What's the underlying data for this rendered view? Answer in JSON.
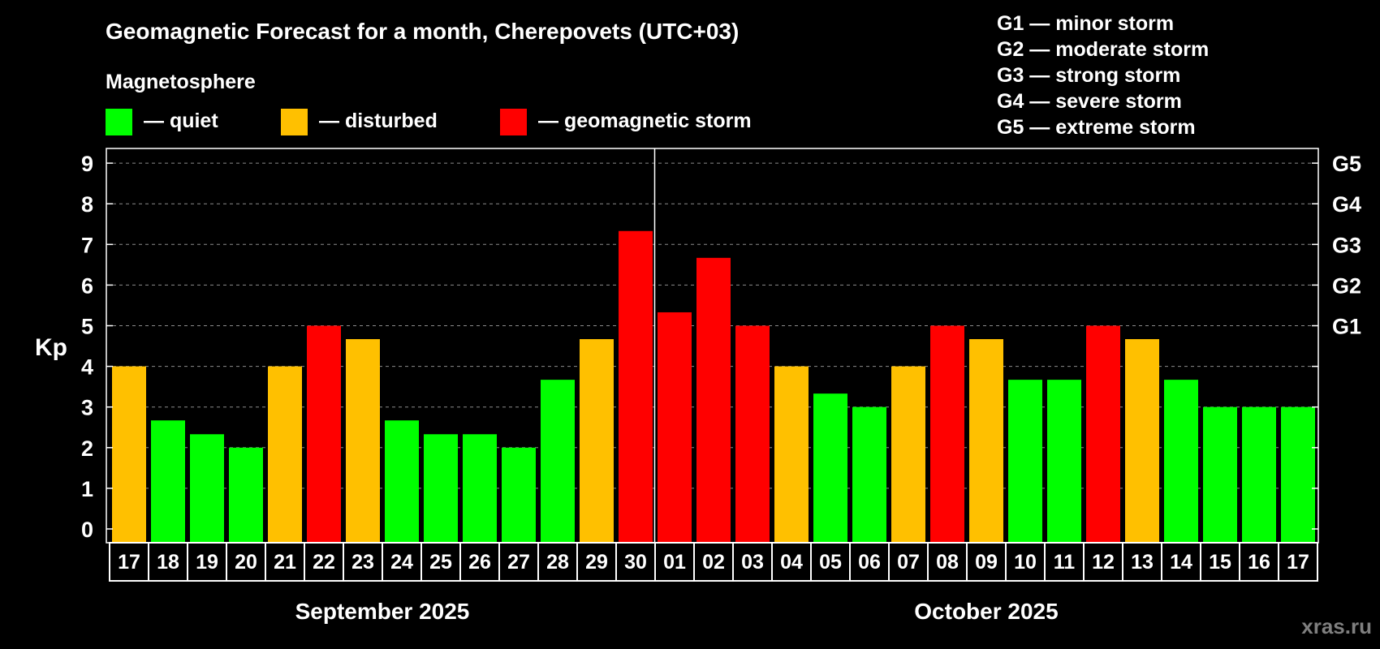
{
  "colors": {
    "quiet": "#00ff00",
    "disturbed": "#ffc000",
    "storm": "#ff0000",
    "background": "#000000",
    "foreground": "#ffffff",
    "watermark": "#7f7f7f"
  },
  "watermark": "xras.ru",
  "chart_data": {
    "type": "bar",
    "title": "Geomagnetic Forecast for a month, Cherepovets (UTC+03)",
    "ylabel": "Kp",
    "ylim": [
      0,
      9
    ],
    "yticks": [
      "0",
      "1",
      "2",
      "3",
      "4",
      "5",
      "6",
      "7",
      "8",
      "9"
    ],
    "grid": true,
    "right_axis": [
      {
        "label": "G1",
        "value": 5
      },
      {
        "label": "G2",
        "value": 6
      },
      {
        "label": "G3",
        "value": 7
      },
      {
        "label": "G4",
        "value": 8
      },
      {
        "label": "G5",
        "value": 9
      }
    ],
    "legend": {
      "heading": "Magnetosphere",
      "items": [
        {
          "key": "quiet",
          "label": "— quiet"
        },
        {
          "key": "disturbed",
          "label": "— disturbed"
        },
        {
          "key": "storm",
          "label": "— geomagnetic storm"
        }
      ]
    },
    "storm_scale": [
      "G1 — minor storm",
      "G2 — moderate storm",
      "G3 — strong storm",
      "G4 — severe storm",
      "G5 — extreme storm"
    ],
    "months": [
      {
        "label": "September 2025",
        "from": 0,
        "to": 13
      },
      {
        "label": "October 2025",
        "from": 14,
        "to": 30
      }
    ],
    "month_divider_after_index": 13,
    "categories": [
      "17",
      "18",
      "19",
      "20",
      "21",
      "22",
      "23",
      "24",
      "25",
      "26",
      "27",
      "28",
      "29",
      "30",
      "01",
      "02",
      "03",
      "04",
      "05",
      "06",
      "07",
      "08",
      "09",
      "10",
      "11",
      "12",
      "13",
      "14",
      "15",
      "16",
      "17"
    ],
    "values": [
      4.0,
      2.67,
      2.33,
      2.0,
      4.0,
      5.0,
      4.67,
      2.67,
      2.33,
      2.33,
      2.0,
      3.67,
      4.67,
      7.33,
      5.33,
      6.67,
      5.0,
      4.0,
      3.33,
      3.0,
      4.0,
      5.0,
      4.67,
      3.67,
      3.67,
      5.0,
      4.67,
      3.67,
      3.0,
      3.0,
      3.0
    ],
    "levels": [
      "disturbed",
      "quiet",
      "quiet",
      "quiet",
      "disturbed",
      "storm",
      "disturbed",
      "quiet",
      "quiet",
      "quiet",
      "quiet",
      "quiet",
      "disturbed",
      "storm",
      "storm",
      "storm",
      "storm",
      "disturbed",
      "quiet",
      "quiet",
      "disturbed",
      "storm",
      "disturbed",
      "quiet",
      "quiet",
      "storm",
      "disturbed",
      "quiet",
      "quiet",
      "quiet",
      "quiet"
    ]
  }
}
